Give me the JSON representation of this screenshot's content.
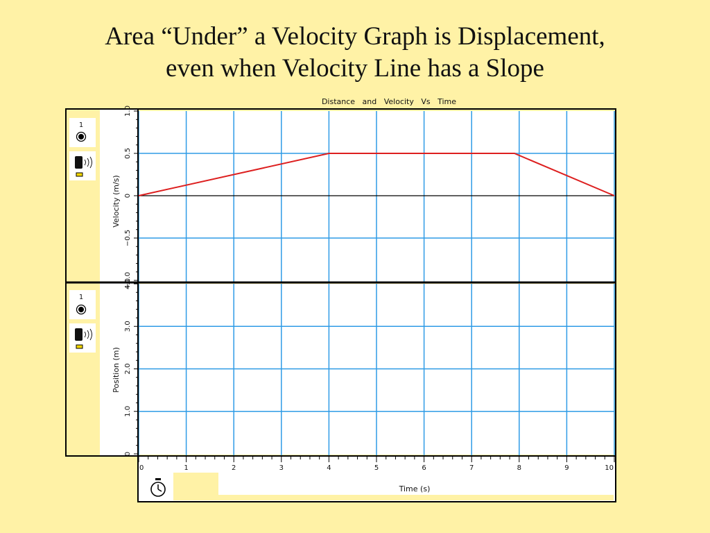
{
  "slide": {
    "title_line1": "Area “Under” a Velocity Graph is Displacement,",
    "title_line2": "even when Velocity Line has a Slope"
  },
  "colors": {
    "background": "#fff2a6",
    "grid": "#2e9be6",
    "data_line": "#dd1f1f",
    "frame": "#000000",
    "zero_line": "#000000"
  },
  "icons": {
    "channel_marker": "radio-dot-icon",
    "sensor": "motion-sensor-icon",
    "timer": "stopwatch-icon"
  },
  "chart_data": [
    {
      "type": "line",
      "title": "Distance   and   Velocity   Vs   Time",
      "panel": "top",
      "channel_label": "1",
      "ylabel": "Velocity (m/s)",
      "xlabel": "Time (s)",
      "xlim": [
        0,
        10
      ],
      "ylim": [
        -1.0,
        1.0
      ],
      "yticks": [
        1.0,
        0.5,
        0,
        -0.5,
        -1.0
      ],
      "ytick_labels": [
        "1.0",
        "0.5",
        "0",
        "−0.5",
        "−1.0"
      ],
      "grid": true,
      "series": [
        {
          "x": [
            0,
            4,
            7.9,
            10
          ],
          "y": [
            0,
            0.5,
            0.5,
            0
          ]
        }
      ]
    },
    {
      "type": "line",
      "panel": "bottom",
      "channel_label": "1",
      "ylabel": "Position (m)",
      "xlabel": "Time (s)",
      "xlim": [
        0,
        10
      ],
      "ylim": [
        0,
        4.0
      ],
      "yticks": [
        4.0,
        3.0,
        2.0,
        1.0,
        0
      ],
      "ytick_labels": [
        "4.0",
        "3.0",
        "2.0",
        "1.0",
        "0"
      ],
      "xticks": [
        0,
        1,
        2,
        3,
        4,
        5,
        6,
        7,
        8,
        9,
        10
      ],
      "xtick_labels": [
        "0",
        "1",
        "2",
        "3",
        "4",
        "5",
        "6",
        "7",
        "8",
        "9",
        "10"
      ],
      "grid": true,
      "series": []
    }
  ]
}
